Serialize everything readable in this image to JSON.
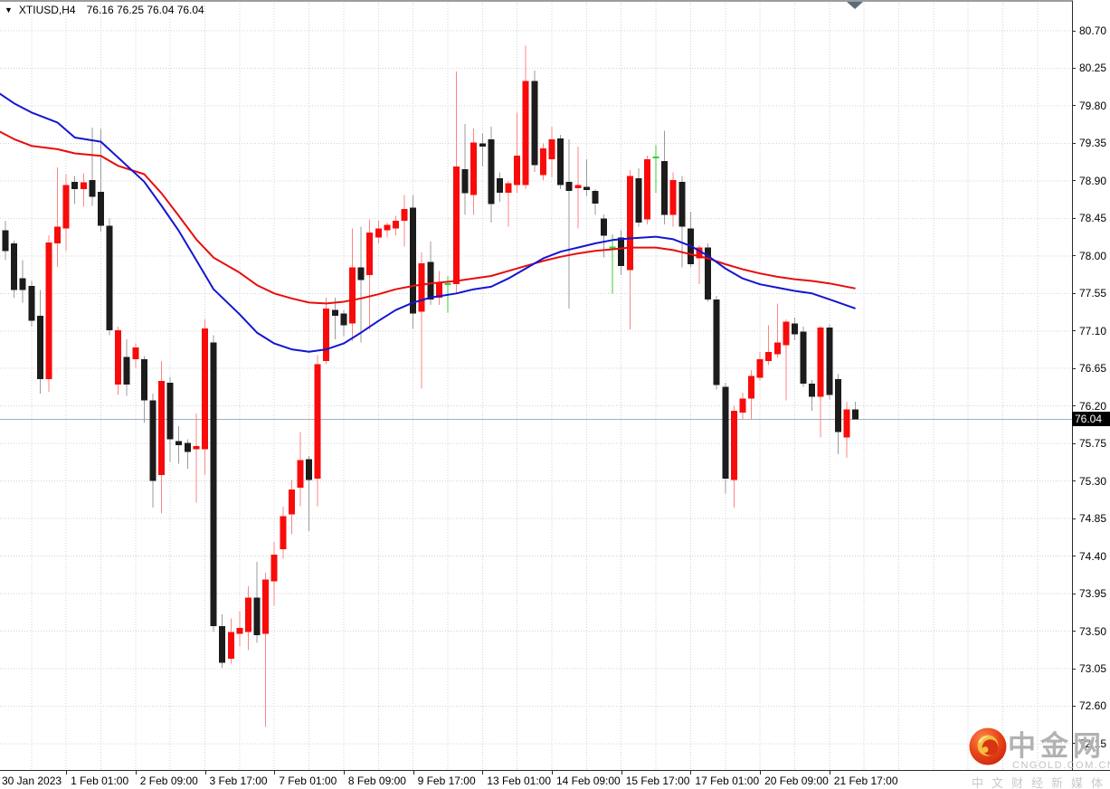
{
  "window": {
    "dropdown_icon": "▼",
    "symbol": "XTIUSD,H4",
    "ohlc_line": "76.16 76.25 76.04 76.04"
  },
  "price_axis": {
    "labels": [
      "80.70",
      "80.25",
      "79.80",
      "79.35",
      "78.90",
      "78.45",
      "78.00",
      "77.55",
      "77.10",
      "76.65",
      "76.20",
      "75.75",
      "75.30",
      "74.85",
      "74.40",
      "73.95",
      "73.50",
      "73.05",
      "72.60",
      "72.15"
    ],
    "current_price": "76.04"
  },
  "time_axis": {
    "labels": [
      "30 Jan 2023",
      "1 Feb 01:00",
      "2 Feb 09:00",
      "3 Feb 17:00",
      "7 Feb 01:00",
      "8 Feb 09:00",
      "9 Feb 17:00",
      "13 Feb 01:00",
      "14 Feb 09:00",
      "15 Feb 17:00",
      "17 Feb 01:00",
      "20 Feb 09:00",
      "21 Feb 17:00"
    ]
  },
  "watermark": {
    "brand": "中金网",
    "site": "CNGOLD.COM.CN",
    "tagline": "中文财经新媒体"
  },
  "colors": {
    "bull_body": "#f80b0b",
    "bear_body": "#1c1c1c",
    "doji": "#35cf35",
    "bull_wick": "#ff8585",
    "bear_wick": "#9b9b9b",
    "ma_red": "#e80c0c",
    "ma_blue": "#1515d0",
    "grid": "#cdd3de",
    "price_line": "#9fb0bd",
    "marker": "#5a6b7a",
    "badge_bg": "#000000",
    "badge_text": "#ffffff"
  },
  "chart_data": {
    "type": "candlestick",
    "symbol": "XTIUSD",
    "timeframe": "H4",
    "title": "XTIUSD,H4",
    "current_ohlc": {
      "open": 76.16,
      "high": 76.25,
      "low": 76.04,
      "close": 76.04
    },
    "current_price": 76.04,
    "ylim": [
      72.15,
      80.7
    ],
    "y_tick_step": 0.45,
    "bars_per_label": 8,
    "grid": "dotted",
    "x_labels": [
      "30 Jan 2023",
      "1 Feb 01:00",
      "2 Feb 09:00",
      "3 Feb 17:00",
      "7 Feb 01:00",
      "8 Feb 09:00",
      "9 Feb 17:00",
      "13 Feb 01:00",
      "14 Feb 09:00",
      "15 Feb 17:00",
      "17 Feb 01:00",
      "20 Feb 09:00",
      "21 Feb 17:00"
    ],
    "candles": [
      [
        78.9,
        79.15,
        77.95,
        78.1
      ],
      [
        78.31,
        78.42,
        77.95,
        78.06
      ],
      [
        78.15,
        78.18,
        77.5,
        77.59
      ],
      [
        77.73,
        77.95,
        77.44,
        77.59
      ],
      [
        77.64,
        77.7,
        77.15,
        77.22
      ],
      [
        77.28,
        77.59,
        76.35,
        76.52
      ],
      [
        76.52,
        78.25,
        76.37,
        78.16
      ],
      [
        78.15,
        79.06,
        77.87,
        78.35
      ],
      [
        78.33,
        78.98,
        78.06,
        78.85
      ],
      [
        78.89,
        78.96,
        78.62,
        78.8
      ],
      [
        78.8,
        78.99,
        78.59,
        78.88
      ],
      [
        78.91,
        79.54,
        78.6,
        78.71
      ],
      [
        78.77,
        79.52,
        78.29,
        78.36
      ],
      [
        78.36,
        78.45,
        77.05,
        77.11
      ],
      [
        76.46,
        77.15,
        76.33,
        77.11
      ],
      [
        76.79,
        77.0,
        76.32,
        76.46
      ],
      [
        76.76,
        76.95,
        76.66,
        76.9
      ],
      [
        76.76,
        76.8,
        76.0,
        76.27
      ],
      [
        76.27,
        76.35,
        74.98,
        75.3
      ],
      [
        75.37,
        76.74,
        74.91,
        76.5
      ],
      [
        76.48,
        76.55,
        75.53,
        75.8
      ],
      [
        75.78,
        75.96,
        75.51,
        75.73
      ],
      [
        75.76,
        75.8,
        75.45,
        75.65
      ],
      [
        75.68,
        76.11,
        75.04,
        75.72
      ],
      [
        75.68,
        77.24,
        75.38,
        77.13
      ],
      [
        76.96,
        77.05,
        73.49,
        73.56
      ],
      [
        73.56,
        73.7,
        73.06,
        73.12
      ],
      [
        73.17,
        73.65,
        73.11,
        73.49
      ],
      [
        73.47,
        73.74,
        73.32,
        73.54
      ],
      [
        73.49,
        74.04,
        73.27,
        73.9
      ],
      [
        73.9,
        74.33,
        73.36,
        73.45
      ],
      [
        73.47,
        74.2,
        72.35,
        74.12
      ],
      [
        74.1,
        74.57,
        73.81,
        74.42
      ],
      [
        74.48,
        74.99,
        74.37,
        74.88
      ],
      [
        74.9,
        75.31,
        74.66,
        75.2
      ],
      [
        75.22,
        75.89,
        75.0,
        75.55
      ],
      [
        75.56,
        75.6,
        74.7,
        75.31
      ],
      [
        75.33,
        76.81,
        75.0,
        76.7
      ],
      [
        76.74,
        77.5,
        76.7,
        77.37
      ],
      [
        77.35,
        77.5,
        77.0,
        77.28
      ],
      [
        77.31,
        77.35,
        77.04,
        77.17
      ],
      [
        77.19,
        78.33,
        76.98,
        77.86
      ],
      [
        77.86,
        78.35,
        76.96,
        77.71
      ],
      [
        77.77,
        78.44,
        77.12,
        78.28
      ],
      [
        78.22,
        78.42,
        78.15,
        78.33
      ],
      [
        78.31,
        78.4,
        78.22,
        78.37
      ],
      [
        78.33,
        78.48,
        78.25,
        78.42
      ],
      [
        78.42,
        78.73,
        78.11,
        78.56
      ],
      [
        78.58,
        78.73,
        77.13,
        77.31
      ],
      [
        77.33,
        78.04,
        76.41,
        77.91
      ],
      [
        77.93,
        78.17,
        77.41,
        77.48
      ],
      [
        77.5,
        77.82,
        77.41,
        77.68
      ],
      [
        77.66,
        77.76,
        77.32,
        77.66
      ],
      [
        77.66,
        80.21,
        77.54,
        79.07
      ],
      [
        79.04,
        79.58,
        78.49,
        78.75
      ],
      [
        78.73,
        79.53,
        78.49,
        79.36
      ],
      [
        79.35,
        79.47,
        79.07,
        79.31
      ],
      [
        79.4,
        79.55,
        78.4,
        78.62
      ],
      [
        78.93,
        79.0,
        78.65,
        78.76
      ],
      [
        78.76,
        78.9,
        78.35,
        78.87
      ],
      [
        78.85,
        79.72,
        78.76,
        79.2
      ],
      [
        78.85,
        80.52,
        78.8,
        80.1
      ],
      [
        80.1,
        80.22,
        79.01,
        79.09
      ],
      [
        78.97,
        79.35,
        78.91,
        79.29
      ],
      [
        79.16,
        79.55,
        78.94,
        79.4
      ],
      [
        79.41,
        79.45,
        78.8,
        78.85
      ],
      [
        78.89,
        79.4,
        77.37,
        78.78
      ],
      [
        78.81,
        79.31,
        78.33,
        78.85
      ],
      [
        78.83,
        79.16,
        78.72,
        78.79
      ],
      [
        78.78,
        78.8,
        78.49,
        78.63
      ],
      [
        78.45,
        78.5,
        77.98,
        78.24
      ],
      [
        78.1,
        78.26,
        77.55,
        78.1
      ],
      [
        78.22,
        78.31,
        77.77,
        77.88
      ],
      [
        77.83,
        79.03,
        77.12,
        78.96
      ],
      [
        78.93,
        79.05,
        78.35,
        78.4
      ],
      [
        78.44,
        79.2,
        78.38,
        79.16
      ],
      [
        79.18,
        79.33,
        78.76,
        79.18
      ],
      [
        79.14,
        79.5,
        78.38,
        78.49
      ],
      [
        78.49,
        79.0,
        78.35,
        78.91
      ],
      [
        78.89,
        78.96,
        77.86,
        78.35
      ],
      [
        78.33,
        78.53,
        77.86,
        77.9
      ],
      [
        77.97,
        78.13,
        77.66,
        78.1
      ],
      [
        78.1,
        78.15,
        77.45,
        77.48
      ],
      [
        77.48,
        77.52,
        76.4,
        76.45
      ],
      [
        76.43,
        76.48,
        75.15,
        75.33
      ],
      [
        75.31,
        76.2,
        74.98,
        76.14
      ],
      [
        76.12,
        76.36,
        76.04,
        76.29
      ],
      [
        76.29,
        76.63,
        76.04,
        76.56
      ],
      [
        76.54,
        76.85,
        76.5,
        76.76
      ],
      [
        76.74,
        77.17,
        76.69,
        76.85
      ],
      [
        76.82,
        77.43,
        76.78,
        76.96
      ],
      [
        76.93,
        77.24,
        76.27,
        77.21
      ],
      [
        77.19,
        77.26,
        76.99,
        77.06
      ],
      [
        77.09,
        77.15,
        76.43,
        76.47
      ],
      [
        76.47,
        76.51,
        76.14,
        76.31
      ],
      [
        76.31,
        77.16,
        75.82,
        77.14
      ],
      [
        77.14,
        77.18,
        76.28,
        76.33
      ],
      [
        76.52,
        76.58,
        75.62,
        75.89
      ],
      [
        75.82,
        76.25,
        75.58,
        76.16
      ],
      [
        76.16,
        76.25,
        76.04,
        76.04
      ]
    ],
    "ma_red": [
      [
        0,
        79.51
      ],
      [
        2,
        79.4
      ],
      [
        4,
        79.32
      ],
      [
        7,
        79.28
      ],
      [
        9,
        79.23
      ],
      [
        12,
        79.2
      ],
      [
        14,
        79.08
      ],
      [
        17,
        78.98
      ],
      [
        19,
        78.75
      ],
      [
        21,
        78.48
      ],
      [
        23,
        78.2
      ],
      [
        25,
        77.98
      ],
      [
        28,
        77.8
      ],
      [
        30,
        77.65
      ],
      [
        32,
        77.55
      ],
      [
        34,
        77.49
      ],
      [
        36,
        77.44
      ],
      [
        38,
        77.43
      ],
      [
        40,
        77.45
      ],
      [
        42,
        77.49
      ],
      [
        44,
        77.54
      ],
      [
        46,
        77.6
      ],
      [
        48,
        77.64
      ],
      [
        50,
        77.67
      ],
      [
        53,
        77.7
      ],
      [
        55,
        77.73
      ],
      [
        57,
        77.76
      ],
      [
        59,
        77.82
      ],
      [
        61,
        77.88
      ],
      [
        63,
        77.94
      ],
      [
        65,
        77.99
      ],
      [
        67,
        78.03
      ],
      [
        69,
        78.06
      ],
      [
        71,
        78.08
      ],
      [
        73,
        78.1
      ],
      [
        76,
        78.1
      ],
      [
        78,
        78.07
      ],
      [
        80,
        78.02
      ],
      [
        82,
        77.97
      ],
      [
        84,
        77.9
      ],
      [
        86,
        77.84
      ],
      [
        88,
        77.79
      ],
      [
        90,
        77.75
      ],
      [
        92,
        77.72
      ],
      [
        94,
        77.7
      ],
      [
        96,
        77.67
      ],
      [
        99,
        77.61
      ]
    ],
    "ma_blue": [
      [
        0,
        79.97
      ],
      [
        2,
        79.83
      ],
      [
        4,
        79.72
      ],
      [
        7,
        79.6
      ],
      [
        9,
        79.42
      ],
      [
        12,
        79.37
      ],
      [
        14,
        79.18
      ],
      [
        17,
        78.89
      ],
      [
        19,
        78.6
      ],
      [
        21,
        78.3
      ],
      [
        23,
        77.95
      ],
      [
        25,
        77.6
      ],
      [
        28,
        77.3
      ],
      [
        30,
        77.08
      ],
      [
        32,
        76.95
      ],
      [
        34,
        76.88
      ],
      [
        36,
        76.85
      ],
      [
        38,
        76.88
      ],
      [
        40,
        76.95
      ],
      [
        42,
        77.08
      ],
      [
        44,
        77.22
      ],
      [
        46,
        77.35
      ],
      [
        48,
        77.44
      ],
      [
        50,
        77.5
      ],
      [
        53,
        77.55
      ],
      [
        55,
        77.6
      ],
      [
        57,
        77.63
      ],
      [
        59,
        77.73
      ],
      [
        61,
        77.85
      ],
      [
        63,
        77.97
      ],
      [
        65,
        78.05
      ],
      [
        67,
        78.1
      ],
      [
        69,
        78.15
      ],
      [
        71,
        78.19
      ],
      [
        73,
        78.21
      ],
      [
        76,
        78.23
      ],
      [
        78,
        78.2
      ],
      [
        80,
        78.12
      ],
      [
        82,
        78.0
      ],
      [
        84,
        77.85
      ],
      [
        86,
        77.73
      ],
      [
        88,
        77.66
      ],
      [
        90,
        77.62
      ],
      [
        92,
        77.58
      ],
      [
        94,
        77.55
      ],
      [
        96,
        77.48
      ],
      [
        99,
        77.37
      ]
    ]
  }
}
